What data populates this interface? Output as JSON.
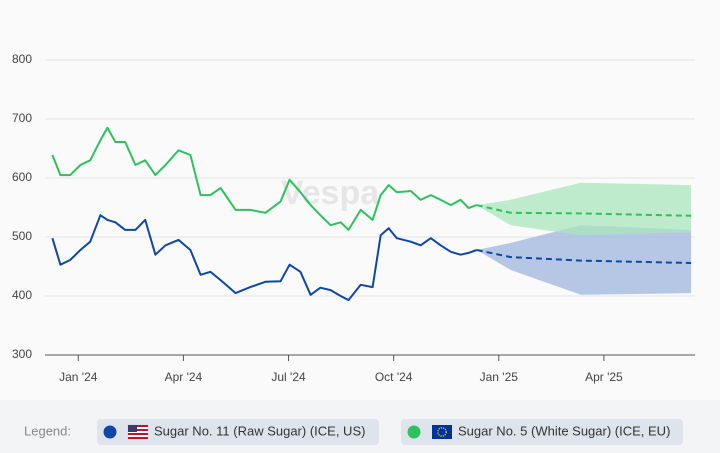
{
  "chart_data": {
    "type": "line",
    "watermark": "Vespa",
    "legend_label": "Legend:",
    "x": [
      -0.74,
      -0.51,
      -0.23,
      0.06,
      0.34,
      0.63,
      0.83,
      1.06,
      1.34,
      1.63,
      1.91,
      2.2,
      2.49,
      2.86,
      3.2,
      3.49,
      3.77,
      4.06,
      4.49,
      4.91,
      5.34,
      5.77,
      6.03,
      6.34,
      6.63,
      6.91,
      7.2,
      7.49,
      7.71,
      8.06,
      8.4,
      8.63,
      8.86,
      9.09,
      9.49,
      9.77,
      10.06,
      10.34,
      10.63,
      10.91,
      11.14,
      11.37
    ],
    "series": [
      {
        "name": "Sugar No. 11 (Raw Sugar) (ICE, US)",
        "color": "#0f46a8",
        "band_color": "#9fb6df",
        "values": [
          498,
          453,
          461,
          478,
          492,
          537,
          529,
          525,
          512,
          512,
          529,
          470,
          486,
          495,
          478,
          436,
          441,
          427,
          405,
          415,
          424,
          425,
          453,
          441,
          402,
          414,
          410,
          400,
          393,
          419,
          415,
          503,
          515,
          498,
          492,
          486,
          498,
          486,
          475,
          470,
          473,
          478
        ],
        "forecast": {
          "x": [
            11.37,
            12.34,
            14.34,
            17.49
          ],
          "values": [
            478,
            466,
            460,
            456
          ],
          "lower": [
            478,
            444,
            402,
            405
          ],
          "upper": [
            478,
            490,
            520,
            512
          ]
        }
      },
      {
        "name": "Sugar No. 5 (White Sugar) (ICE, EU)",
        "color": "#2cc25c",
        "band_color": "#a8e6bb",
        "values": [
          639,
          605,
          605,
          622,
          630,
          664,
          685,
          661,
          661,
          622,
          630,
          605,
          622,
          647,
          639,
          571,
          571,
          583,
          546,
          546,
          541,
          560,
          597,
          576,
          554,
          537,
          520,
          525,
          512,
          546,
          529,
          571,
          588,
          576,
          578,
          563,
          571,
          563,
          554,
          563,
          549,
          554
        ],
        "forecast": {
          "x": [
            11.37,
            12.34,
            14.34,
            17.49
          ],
          "values": [
            554,
            541,
            540,
            536
          ],
          "lower": [
            554,
            520,
            503,
            508
          ],
          "upper": [
            554,
            563,
            592,
            588
          ]
        }
      }
    ],
    "xlim": [
      -0.95,
      17.6
    ],
    "xticks": [
      {
        "value": 0,
        "label": "Jan '24"
      },
      {
        "value": 3,
        "label": "Apr '24"
      },
      {
        "value": 6,
        "label": "Jul '24"
      },
      {
        "value": 9,
        "label": "Oct '24"
      },
      {
        "value": 12,
        "label": "Jan '25"
      },
      {
        "value": 15,
        "label": "Apr '25"
      }
    ],
    "ylim": [
      300,
      800
    ],
    "yticks": [
      300,
      400,
      500,
      600,
      700,
      800
    ],
    "grid": true
  }
}
